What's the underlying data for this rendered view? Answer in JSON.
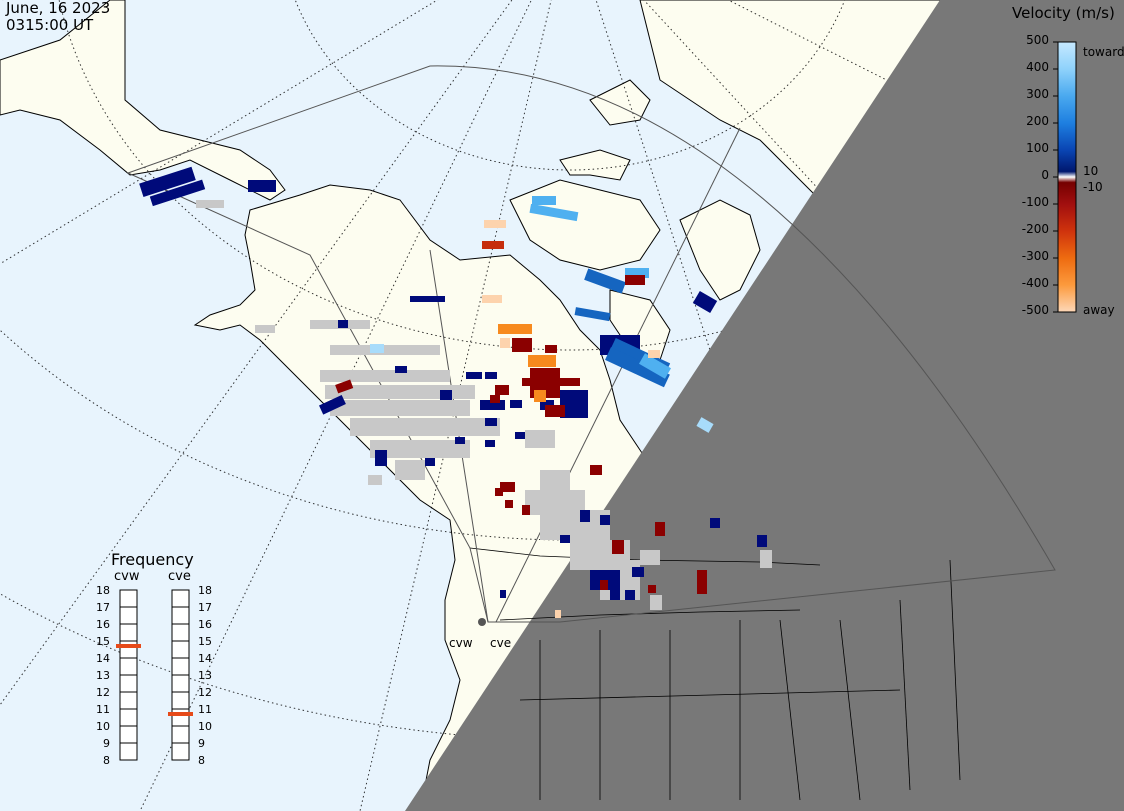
{
  "header": {
    "date": "June, 16 2023",
    "time": "0315:00 UT"
  },
  "velocity_legend": {
    "title": "Velocity (m/s)",
    "ticks": [
      "500",
      "400",
      "300",
      "200",
      "100",
      "0",
      "-100",
      "-200",
      "-300",
      "-400",
      "-500"
    ],
    "inner_ticks": [
      "10",
      "-10"
    ],
    "toward_label": "toward",
    "away_label": "away",
    "colors": [
      "#c6e9ff",
      "#8fd2fb",
      "#55b6f1",
      "#2196f3",
      "#0f66d0",
      "#0a3fa8",
      "#00247a",
      "#000a66",
      "#8b0000",
      "#a01010",
      "#b51a0e",
      "#d0340d",
      "#e55510",
      "#f77e11",
      "#fca653",
      "#fdd3ad"
    ],
    "ground_scatter_color": "#c8c8c8"
  },
  "frequency": {
    "title": "Frequency",
    "columns": [
      "cvw",
      "cve"
    ],
    "ticks": [
      "18",
      "17",
      "16",
      "15",
      "14",
      "13",
      "12",
      "11",
      "10",
      "9",
      "8"
    ],
    "cvw_value": 15,
    "cve_value": 11,
    "marker_color": "#e64a19"
  },
  "radars": {
    "west": "cvw",
    "east": "cve"
  },
  "colors": {
    "ocean": "#e8f4fd",
    "land": "#fdfdf0",
    "night": "#787878",
    "coast": "#000000"
  }
}
